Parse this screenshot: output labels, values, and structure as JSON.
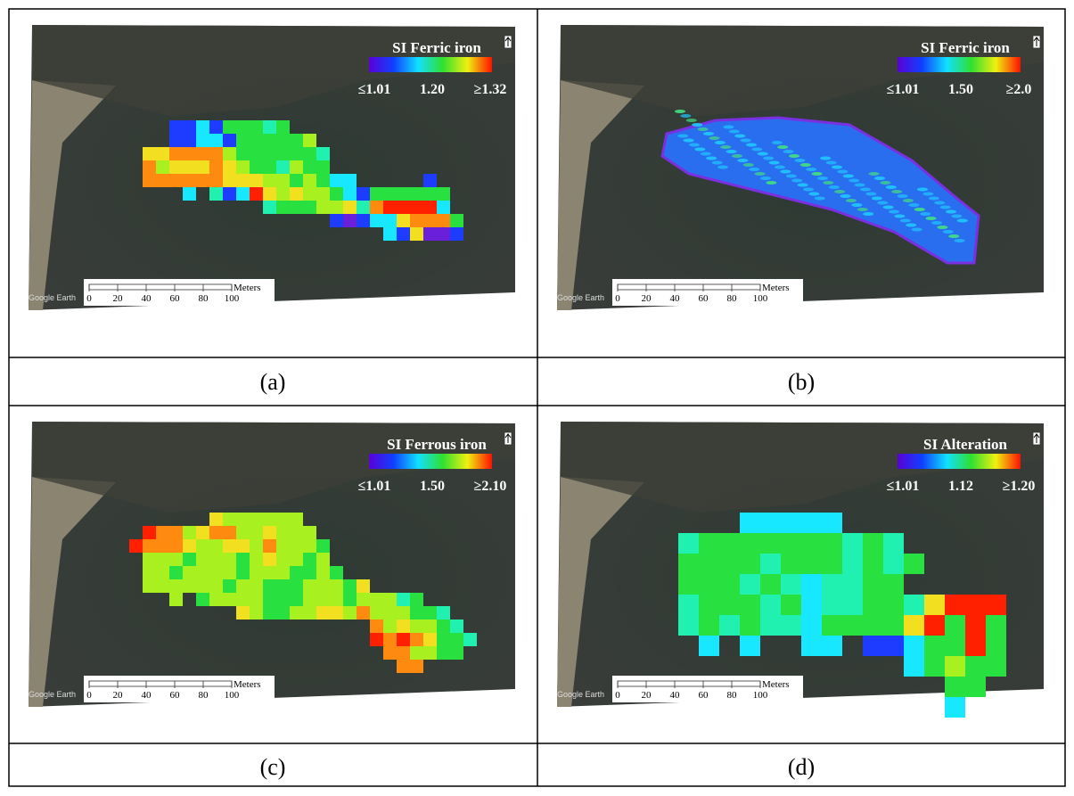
{
  "panels": [
    {
      "legend": {
        "title": "SI Ferric iron",
        "min": "≤1.01",
        "mid": "1.20",
        "max": "≥1.32"
      },
      "caption": "(a)"
    },
    {
      "legend": {
        "title": "SI Ferric iron",
        "min": "≤1.01",
        "mid": "1.50",
        "max": "≥2.0"
      },
      "caption": "(b)"
    },
    {
      "legend": {
        "title": "SI Ferrous iron",
        "min": "≤1.01",
        "mid": "1.50",
        "max": "≥2.10"
      },
      "caption": "(c)"
    },
    {
      "legend": {
        "title": "SI Alteration",
        "min": "≤1.01",
        "mid": "1.12",
        "max": "≥1.20"
      },
      "caption": "(d)"
    }
  ],
  "scale_bar": {
    "ticks": [
      "0",
      "20",
      "40",
      "60",
      "80",
      "100"
    ],
    "unit": "Meters"
  },
  "watermark": "Google Earth"
}
